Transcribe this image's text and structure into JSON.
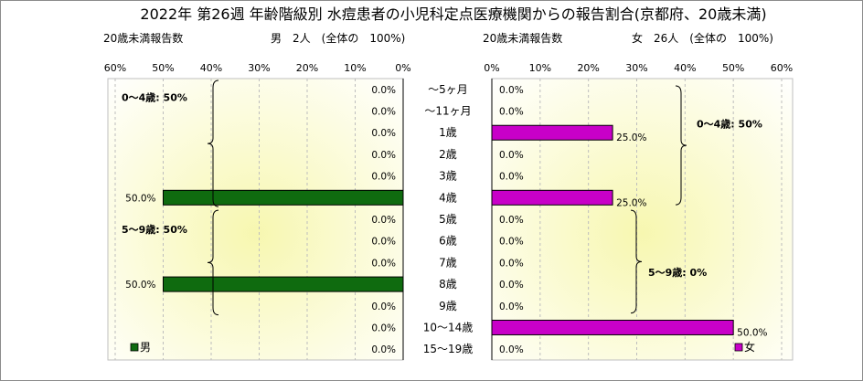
{
  "chart_data": {
    "type": "bar",
    "title": "2022年 第26週 年齢階級別 水痘患者の小児科定点医療機関からの報告割合(京都府、20歳未満)",
    "categories": [
      "～5ヶ月",
      "～11ヶ月",
      "1歳",
      "2歳",
      "3歳",
      "4歳",
      "5歳",
      "6歳",
      "7歳",
      "8歳",
      "9歳",
      "10～14歳",
      "15～19歳"
    ],
    "unit": "%",
    "left_panel": {
      "caption": "20歳未満報告数",
      "total_label": "男　2人　(全体の　100%)",
      "ticks": [
        "60%",
        "50%",
        "40%",
        "30%",
        "20%",
        "10%",
        "0%"
      ],
      "xlim": [
        0,
        60
      ],
      "series": {
        "name": "男",
        "color": "#0f6b0f",
        "values": [
          0,
          0,
          0,
          0,
          0,
          50,
          0,
          0,
          0,
          50,
          0,
          0,
          0
        ]
      },
      "data_labels": [
        "0.0%",
        "0.0%",
        "0.0%",
        "0.0%",
        "0.0%",
        "50.0%",
        "0.0%",
        "0.0%",
        "0.0%",
        "50.0%",
        "0.0%",
        "0.0%",
        "0.0%"
      ],
      "annotations": [
        "0～4歳: 50%",
        "5～9歳: 50%"
      ]
    },
    "right_panel": {
      "caption": "20歳未満報告数",
      "total_label": "女　26人　(全体の　100%)",
      "ticks": [
        "0%",
        "10%",
        "20%",
        "30%",
        "40%",
        "50%",
        "60%"
      ],
      "xlim": [
        0,
        60
      ],
      "series": {
        "name": "女",
        "color": "#c800c8",
        "values": [
          0,
          0,
          25,
          0,
          0,
          25,
          0,
          0,
          0,
          0,
          0,
          50,
          0
        ]
      },
      "data_labels": [
        "0.0%",
        "0.0%",
        "25.0%",
        "0.0%",
        "0.0%",
        "25.0%",
        "0.0%",
        "0.0%",
        "0.0%",
        "0.0%",
        "0.0%",
        "50.0%",
        "0.0%"
      ],
      "annotations": [
        "0～4歳: 50%",
        "5～9歳: 0%"
      ]
    }
  }
}
